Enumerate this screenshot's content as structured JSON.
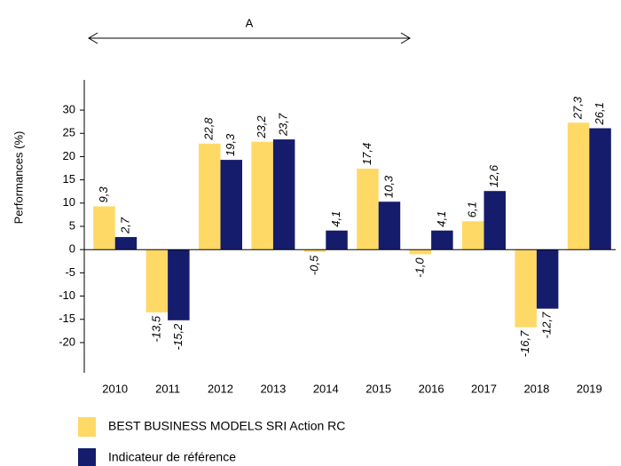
{
  "chart_data": {
    "type": "bar",
    "annotation": "A",
    "y_label": "Performances (%)",
    "categories": [
      "2010",
      "2011",
      "2012",
      "2013",
      "2014",
      "2015",
      "2016",
      "2017",
      "2018",
      "2019"
    ],
    "series": [
      {
        "name": "BEST BUSINESS MODELS SRI Action RC",
        "color": "#ffd966",
        "values": [
          9.3,
          -13.5,
          22.8,
          23.2,
          -0.5,
          17.4,
          -1.0,
          6.1,
          -16.7,
          27.3
        ],
        "value_labels": [
          "9,3",
          "-13,5",
          "22,8",
          "23,2",
          "-0,5",
          "17,4",
          "-1,0",
          "6,1",
          "-16,7",
          "27,3"
        ]
      },
      {
        "name": "Indicateur de référence",
        "color": "#151c6b",
        "values": [
          2.7,
          -15.2,
          19.3,
          23.7,
          4.1,
          10.3,
          4.1,
          12.6,
          -12.7,
          26.1
        ],
        "value_labels": [
          "2,7",
          "-15,2",
          "19,3",
          "23,7",
          "4,1",
          "10,3",
          "4,1",
          "12,6",
          "-12,7",
          "26,1"
        ]
      }
    ],
    "ylim": [
      -26.5,
      36.5
    ],
    "yticks": [
      -20,
      -15,
      -10,
      -5,
      0,
      5,
      10,
      15,
      20,
      25,
      30
    ],
    "grid": false
  }
}
